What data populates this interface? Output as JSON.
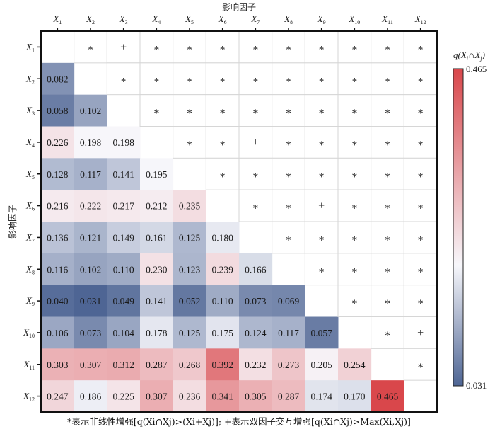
{
  "chart_data": {
    "type": "heatmap",
    "title": "",
    "xlabel": "影响因子",
    "ylabel": "影响因子",
    "x_categories": [
      "X1",
      "X2",
      "X3",
      "X4",
      "X5",
      "X6",
      "X7",
      "X8",
      "X9",
      "X10",
      "X11",
      "X12"
    ],
    "y_categories": [
      "X1",
      "X2",
      "X3",
      "X4",
      "X5",
      "X6",
      "X7",
      "X8",
      "X9",
      "X10",
      "X11",
      "X12"
    ],
    "lower_triangle_values": [
      [],
      [
        0.082
      ],
      [
        0.058,
        0.102
      ],
      [
        0.226,
        0.198,
        0.198
      ],
      [
        0.128,
        0.117,
        0.141,
        0.195
      ],
      [
        0.216,
        0.222,
        0.217,
        0.212,
        0.235
      ],
      [
        0.136,
        0.121,
        0.149,
        0.161,
        0.125,
        0.18
      ],
      [
        0.116,
        0.102,
        0.11,
        0.23,
        0.123,
        0.239,
        0.166
      ],
      [
        0.04,
        0.031,
        0.049,
        0.141,
        0.052,
        0.11,
        0.073,
        0.069
      ],
      [
        0.106,
        0.073,
        0.104,
        0.178,
        0.125,
        0.175,
        0.124,
        0.117,
        0.057
      ],
      [
        0.303,
        0.307,
        0.312,
        0.287,
        0.268,
        0.392,
        0.232,
        0.273,
        0.205,
        0.254
      ],
      [
        0.247,
        0.186,
        0.225,
        0.307,
        0.236,
        0.341,
        0.305,
        0.287,
        0.174,
        0.17,
        0.465
      ]
    ],
    "upper_triangle_symbols": [
      [
        "*",
        "+",
        "*",
        "*",
        "*",
        "*",
        "*",
        "*",
        "*",
        "*",
        "*"
      ],
      [
        "*",
        "*",
        "*",
        "*",
        "*",
        "*",
        "*",
        "*",
        "*",
        "*"
      ],
      [
        "*",
        "*",
        "*",
        "*",
        "*",
        "*",
        "*",
        "*",
        "*"
      ],
      [
        "*",
        "*",
        "+",
        "*",
        "*",
        "*",
        "*",
        "*"
      ],
      [
        "*",
        "*",
        "*",
        "*",
        "*",
        "*",
        "*"
      ],
      [
        "*",
        "*",
        "+",
        "*",
        "*",
        "*"
      ],
      [
        "*",
        "*",
        "*",
        "*",
        "*"
      ],
      [
        "*",
        "*",
        "*",
        "*"
      ],
      [
        "*",
        "*",
        "*"
      ],
      [
        "*",
        "+"
      ],
      [
        "*"
      ],
      []
    ],
    "colorbar": {
      "title": "q(Xi∩Xj)",
      "min": 0.031,
      "max": 0.465,
      "colors": {
        "low": "#4e6594",
        "mid": "#f7f7fb",
        "high": "#d9474b"
      },
      "placement": "right"
    },
    "grid": true,
    "note": "*表示非线性增强[q(Xi∩Xj)>(Xi+Xj)]; +表示双因子交互增强[q(Xi∩Xj)>Max(Xi,Xj)]"
  },
  "labels": {
    "top_axis_title": "影响因子",
    "left_axis_title": "影响因子",
    "colorbar_max": "0.465",
    "colorbar_min": "0.031"
  }
}
